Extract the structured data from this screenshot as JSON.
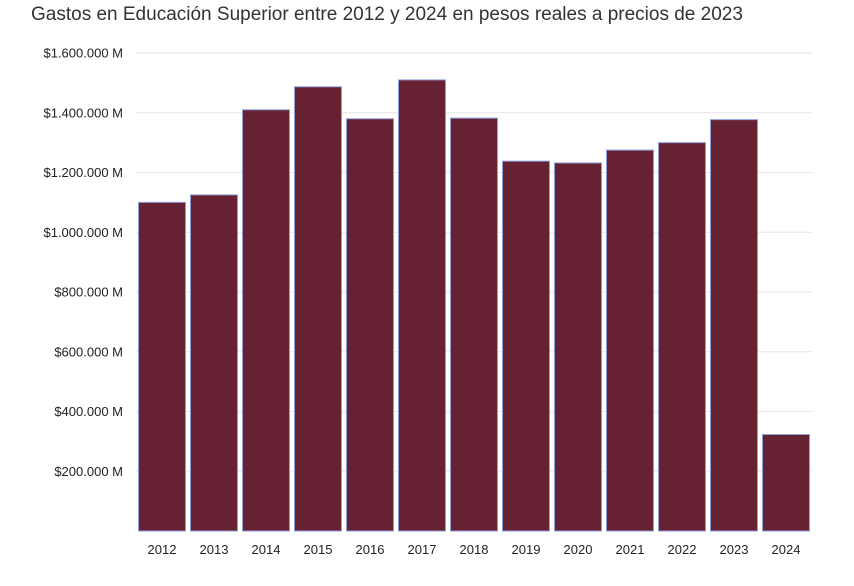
{
  "chart_data": {
    "type": "bar",
    "title": "Gastos en Educación Superior entre 2012 y 2024 en pesos reales a precios de 2023",
    "xlabel": "",
    "ylabel": "",
    "categories": [
      "2012",
      "2013",
      "2014",
      "2015",
      "2016",
      "2017",
      "2018",
      "2019",
      "2020",
      "2021",
      "2022",
      "2023",
      "2024"
    ],
    "values": [
      1100000,
      1125000,
      1410000,
      1487000,
      1380000,
      1510000,
      1382000,
      1238000,
      1232000,
      1275000,
      1300000,
      1377000,
      323000
    ],
    "ylim": [
      0,
      1600000
    ],
    "yticks": [
      {
        "value": 200000,
        "label": "$200.000 M"
      },
      {
        "value": 400000,
        "label": "$400.000 M"
      },
      {
        "value": 600000,
        "label": "$600.000 M"
      },
      {
        "value": 800000,
        "label": "$800.000 M"
      },
      {
        "value": 1000000,
        "label": "$1.000.000 M"
      },
      {
        "value": 1200000,
        "label": "$1.200.000 M"
      },
      {
        "value": 1400000,
        "label": "$1.400.000 M"
      },
      {
        "value": 1600000,
        "label": "$1.600.000 M"
      }
    ],
    "bar_color": "#662233",
    "bar_edge_color": "#8f9fe0",
    "grid": true,
    "legend": "none"
  }
}
